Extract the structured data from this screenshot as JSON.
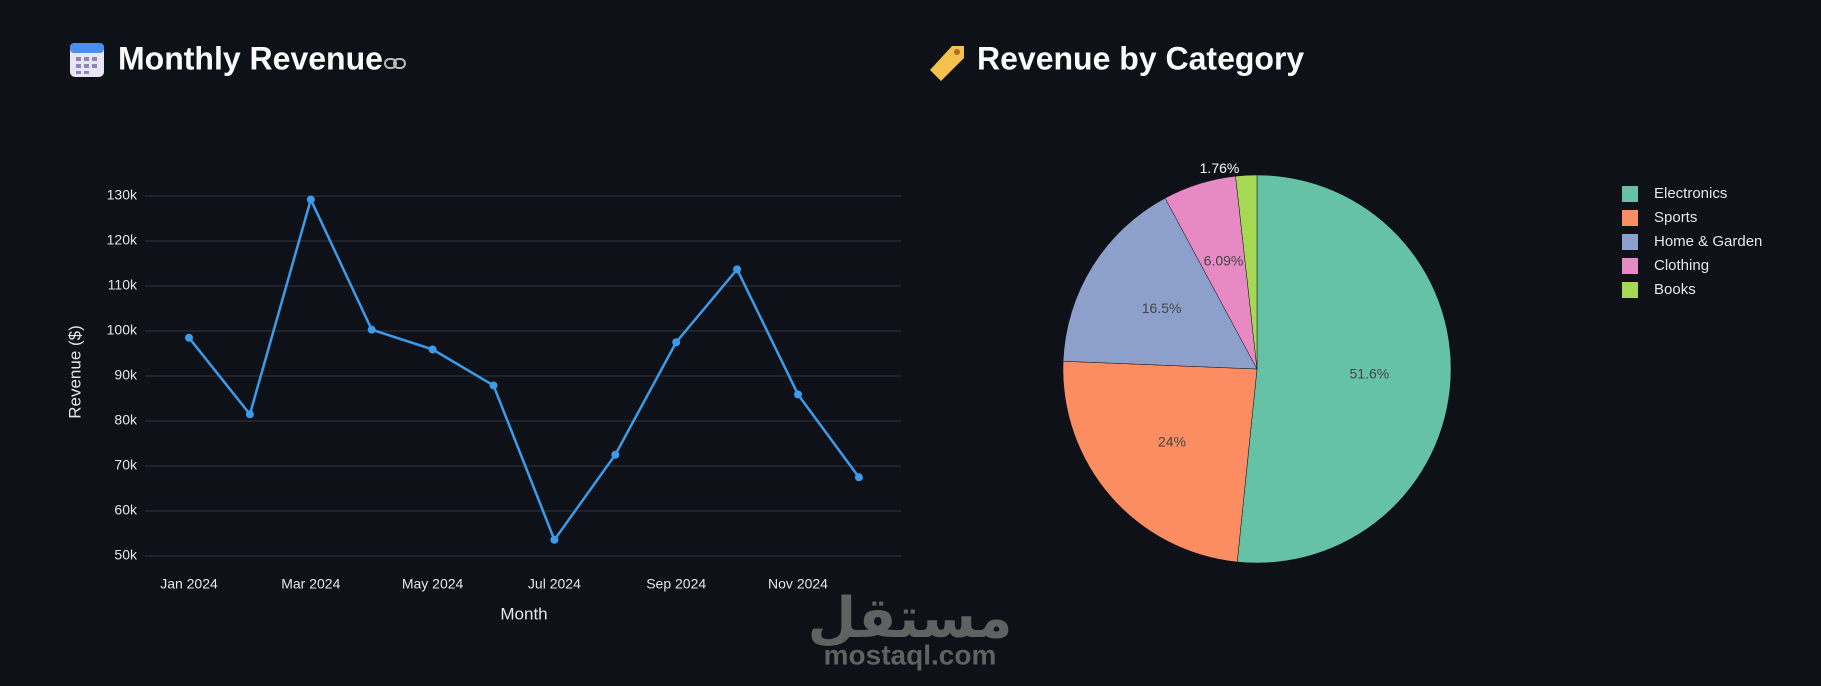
{
  "chart_data": [
    {
      "type": "line",
      "title": "Monthly Revenue",
      "xlabel": "Month",
      "ylabel": "Revenue ($)",
      "categories": [
        "Jan 2024",
        null,
        "Mar 2024",
        null,
        "May 2024",
        null,
        "Jul 2024",
        null,
        "Sep 2024",
        null,
        "Nov 2024",
        null
      ],
      "values": [
        98500,
        81500,
        129200,
        100300,
        95900,
        87900,
        53600,
        72500,
        97500,
        113700,
        85900,
        67500
      ],
      "color": "#3d9be9",
      "ylim": [
        48000,
        132000
      ],
      "yticks": [
        {
          "value": 50000,
          "label": "50k"
        },
        {
          "value": 60000,
          "label": "60k"
        },
        {
          "value": 70000,
          "label": "70k"
        },
        {
          "value": 80000,
          "label": "80k"
        },
        {
          "value": 90000,
          "label": "90k"
        },
        {
          "value": 100000,
          "label": "100k"
        },
        {
          "value": 110000,
          "label": "110k"
        },
        {
          "value": 120000,
          "label": "120k"
        },
        {
          "value": 130000,
          "label": "130k"
        }
      ],
      "grid": true
    },
    {
      "type": "pie",
      "title": "Revenue by Category",
      "categories": [
        "Electronics",
        "Sports",
        "Home & Garden",
        "Clothing",
        "Books"
      ],
      "values": [
        51.6,
        24,
        16.5,
        6.09,
        1.76
      ],
      "value_labels": [
        "51.6%",
        "24%",
        "16.5%",
        "6.09%",
        "1.76%"
      ],
      "colors": [
        "#66c2a5",
        "#fc8d62",
        "#8da0cb",
        "#e78ac3",
        "#a6d854"
      ],
      "legend": "right"
    }
  ],
  "watermark": {
    "arabic": "مستقل",
    "latin": "mostaql.com"
  }
}
